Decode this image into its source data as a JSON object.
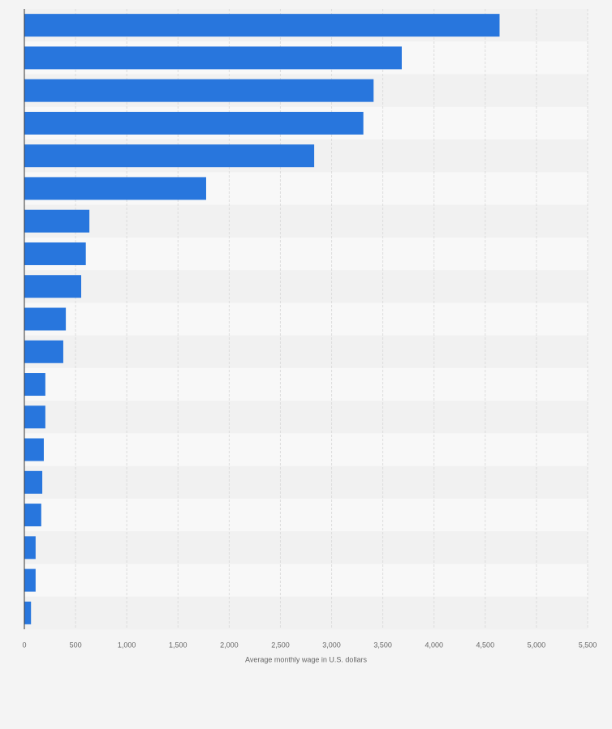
{
  "chart_data": {
    "type": "bar",
    "orientation": "horizontal",
    "x_label": "Average monthly wage in U.S. dollars",
    "categories": [
      null,
      null,
      null,
      null,
      null,
      null,
      null,
      null,
      null,
      null,
      null,
      null,
      null,
      null,
      null,
      null,
      null,
      null,
      null
    ],
    "values": [
      4640,
      3685,
      3410,
      3310,
      2830,
      1775,
      635,
      600,
      555,
      405,
      380,
      205,
      205,
      190,
      175,
      165,
      110,
      110,
      65
    ],
    "color": "#2876dd",
    "xlim": [
      0,
      5500
    ],
    "xticks": [
      0,
      500,
      {
        "value": 1000,
        "label": "1,000"
      },
      {
        "value": 1500,
        "label": "1,500"
      },
      {
        "value": 2000,
        "label": "2,000"
      },
      {
        "value": 2500,
        "label": "2,500"
      },
      {
        "value": 3000,
        "label": "3,000"
      },
      {
        "value": 3500,
        "label": "3,500"
      },
      {
        "value": 4000,
        "label": "4,000"
      },
      {
        "value": 4500,
        "label": "4,500"
      },
      {
        "value": 5000,
        "label": "5,000"
      },
      {
        "value": 5500,
        "label": "5,500"
      }
    ],
    "grid": true
  }
}
